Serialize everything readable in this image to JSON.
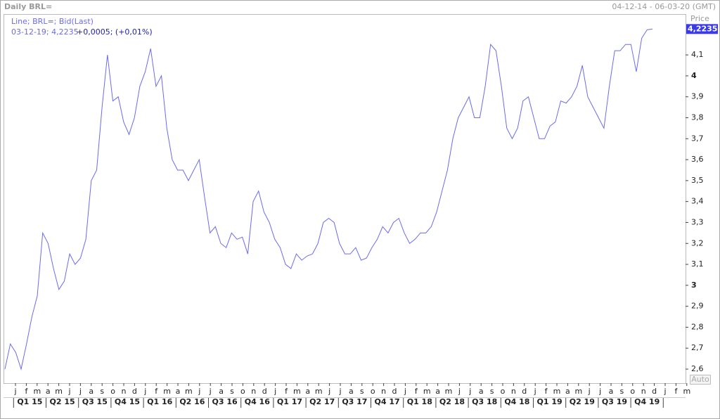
{
  "chart_data": {
    "type": "line",
    "title": "Daily BRL=",
    "date_range": "04-12-14 - 06-03-20 (GMT)",
    "y_label": "Price",
    "legend": "Line; BRL=; Bid(Last)",
    "info": "03-12-19; 4,2235",
    "change": "+0,0005; (+0,01%)",
    "last_value": 4.2235,
    "last_value_label": "4,2235",
    "auto_button": "Auto",
    "month_labels": [
      "j",
      "f",
      "m",
      "a",
      "m",
      "j",
      "j",
      "a",
      "s",
      "o",
      "n",
      "d",
      "j",
      "f",
      "m",
      "a",
      "m",
      "j",
      "j",
      "a",
      "s",
      "o",
      "n",
      "d",
      "j",
      "f",
      "m",
      "a",
      "m",
      "j",
      "j",
      "a",
      "s",
      "o",
      "n",
      "d",
      "j",
      "f",
      "m",
      "a",
      "m",
      "j",
      "j",
      "a",
      "s",
      "o",
      "n",
      "d",
      "j",
      "f",
      "m",
      "a",
      "m",
      "j",
      "j",
      "a",
      "s",
      "o",
      "n",
      "d",
      "j",
      "f",
      "m"
    ],
    "quarter_labels": [
      "Q1 15",
      "Q2 15",
      "Q3 15",
      "Q4 15",
      "Q1 16",
      "Q2 16",
      "Q3 16",
      "Q4 16",
      "Q1 17",
      "Q2 17",
      "Q3 17",
      "Q4 17",
      "Q1 18",
      "Q2 18",
      "Q3 18",
      "Q4 18",
      "Q1 19",
      "Q2 19",
      "Q3 19",
      "Q4 19"
    ],
    "series": [
      {
        "name": "BRL=",
        "color": "#6b6bf0",
        "values": [
          2.6,
          2.72,
          2.68,
          2.6,
          2.72,
          2.85,
          2.95,
          3.25,
          3.2,
          3.08,
          2.98,
          3.02,
          3.15,
          3.1,
          3.13,
          3.22,
          3.5,
          3.55,
          3.85,
          4.1,
          3.88,
          3.9,
          3.78,
          3.72,
          3.8,
          3.95,
          4.02,
          4.13,
          3.95,
          4.0,
          3.75,
          3.6,
          3.55,
          3.55,
          3.5,
          3.55,
          3.6,
          3.42,
          3.25,
          3.28,
          3.2,
          3.18,
          3.25,
          3.22,
          3.23,
          3.15,
          3.4,
          3.45,
          3.35,
          3.3,
          3.22,
          3.18,
          3.1,
          3.08,
          3.15,
          3.12,
          3.14,
          3.15,
          3.2,
          3.3,
          3.32,
          3.3,
          3.2,
          3.15,
          3.15,
          3.18,
          3.12,
          3.13,
          3.18,
          3.22,
          3.28,
          3.25,
          3.3,
          3.32,
          3.25,
          3.2,
          3.22,
          3.25,
          3.25,
          3.28,
          3.35,
          3.45,
          3.55,
          3.7,
          3.8,
          3.85,
          3.9,
          3.8,
          3.8,
          3.95,
          4.15,
          4.12,
          3.95,
          3.75,
          3.7,
          3.75,
          3.88,
          3.9,
          3.8,
          3.7,
          3.7,
          3.76,
          3.78,
          3.88,
          3.87,
          3.9,
          3.95,
          4.05,
          3.9,
          3.85,
          3.8,
          3.75,
          3.95,
          4.12,
          4.12,
          4.15,
          4.15,
          4.02,
          4.18,
          4.22,
          4.2235
        ]
      }
    ],
    "ylim": [
      2.533,
      4.295
    ],
    "yticks": [
      {
        "value": 2.6,
        "label": "2,6"
      },
      {
        "value": 2.7,
        "label": "2,7"
      },
      {
        "value": 2.8,
        "label": "2,8"
      },
      {
        "value": 2.9,
        "label": "2,9"
      },
      3,
      {
        "value": 3.1,
        "label": "3,1"
      },
      {
        "value": 3.2,
        "label": "3,2"
      },
      {
        "value": 3.3,
        "label": "3,3"
      },
      {
        "value": 3.4,
        "label": "3,4"
      },
      {
        "value": 3.5,
        "label": "3,5"
      },
      {
        "value": 3.6,
        "label": "3,6"
      },
      {
        "value": 3.7,
        "label": "3,7"
      },
      {
        "value": 3.8,
        "label": "3,8"
      },
      {
        "value": 3.9,
        "label": "3,9"
      },
      4,
      {
        "value": 4.1,
        "label": "4,1"
      }
    ],
    "grid": false
  }
}
